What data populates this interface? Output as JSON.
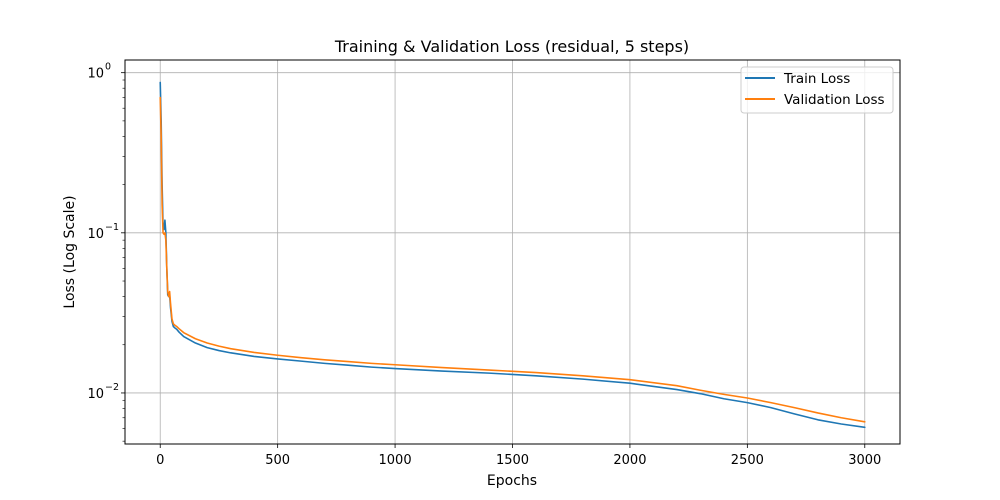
{
  "chart_data": {
    "type": "line",
    "title": "Training & Validation Loss (residual, 5 steps)",
    "xlabel": "Epochs",
    "ylabel": "Loss (Log Scale)",
    "y_scale": "log",
    "xlim": [
      -150,
      3150
    ],
    "ylim": [
      0.0048,
      1.2
    ],
    "grid": true,
    "legend_position": "top-right",
    "x_ticks": [
      {
        "value": 0,
        "label": "0"
      },
      {
        "value": 500,
        "label": "500"
      },
      {
        "value": 1000,
        "label": "1000"
      },
      {
        "value": 1500,
        "label": "1500"
      },
      {
        "value": 2000,
        "label": "2000"
      },
      {
        "value": 2500,
        "label": "2500"
      },
      {
        "value": 3000,
        "label": "3000"
      }
    ],
    "y_ticks": [
      {
        "value": 0.01,
        "base": "10",
        "exp": "−2"
      },
      {
        "value": 0.1,
        "base": "10",
        "exp": "−1"
      },
      {
        "value": 1,
        "base": "10",
        "exp": "0"
      }
    ],
    "series": [
      {
        "name": "Train Loss",
        "color": "#1f77b4",
        "points": [
          [
            0,
            0.87
          ],
          [
            4,
            0.5
          ],
          [
            8,
            0.2
          ],
          [
            12,
            0.11
          ],
          [
            16,
            0.105
          ],
          [
            20,
            0.12
          ],
          [
            24,
            0.1
          ],
          [
            28,
            0.06
          ],
          [
            32,
            0.041
          ],
          [
            36,
            0.04
          ],
          [
            40,
            0.041
          ],
          [
            44,
            0.034
          ],
          [
            50,
            0.028
          ],
          [
            56,
            0.026
          ],
          [
            62,
            0.0255
          ],
          [
            70,
            0.025
          ],
          [
            80,
            0.024
          ],
          [
            100,
            0.0225
          ],
          [
            150,
            0.0205
          ],
          [
            200,
            0.0192
          ],
          [
            250,
            0.0184
          ],
          [
            300,
            0.0178
          ],
          [
            400,
            0.0169
          ],
          [
            500,
            0.0163
          ],
          [
            600,
            0.0158
          ],
          [
            700,
            0.0153
          ],
          [
            800,
            0.0149
          ],
          [
            900,
            0.0145
          ],
          [
            1000,
            0.0142
          ],
          [
            1200,
            0.0137
          ],
          [
            1400,
            0.0133
          ],
          [
            1600,
            0.0128
          ],
          [
            1800,
            0.0122
          ],
          [
            2000,
            0.0115
          ],
          [
            2200,
            0.0105
          ],
          [
            2300,
            0.0099
          ],
          [
            2400,
            0.0092
          ],
          [
            2500,
            0.0087
          ],
          [
            2600,
            0.0081
          ],
          [
            2700,
            0.0074
          ],
          [
            2800,
            0.0068
          ],
          [
            2900,
            0.0064
          ],
          [
            3000,
            0.0061
          ]
        ]
      },
      {
        "name": "Validation Loss",
        "color": "#ff7f0e",
        "points": [
          [
            0,
            0.7
          ],
          [
            4,
            0.4
          ],
          [
            8,
            0.15
          ],
          [
            12,
            0.1
          ],
          [
            16,
            0.098
          ],
          [
            20,
            0.1
          ],
          [
            24,
            0.09
          ],
          [
            28,
            0.06
          ],
          [
            32,
            0.043
          ],
          [
            36,
            0.04
          ],
          [
            40,
            0.043
          ],
          [
            44,
            0.036
          ],
          [
            50,
            0.029
          ],
          [
            56,
            0.027
          ],
          [
            62,
            0.0265
          ],
          [
            70,
            0.026
          ],
          [
            80,
            0.0252
          ],
          [
            100,
            0.0238
          ],
          [
            150,
            0.0218
          ],
          [
            200,
            0.0205
          ],
          [
            250,
            0.0196
          ],
          [
            300,
            0.0189
          ],
          [
            400,
            0.0179
          ],
          [
            500,
            0.0172
          ],
          [
            600,
            0.0166
          ],
          [
            700,
            0.0161
          ],
          [
            800,
            0.0157
          ],
          [
            900,
            0.0153
          ],
          [
            1000,
            0.015
          ],
          [
            1200,
            0.0144
          ],
          [
            1400,
            0.0139
          ],
          [
            1600,
            0.0134
          ],
          [
            1800,
            0.0128
          ],
          [
            2000,
            0.0121
          ],
          [
            2200,
            0.0111
          ],
          [
            2300,
            0.0104
          ],
          [
            2400,
            0.0098
          ],
          [
            2500,
            0.0093
          ],
          [
            2600,
            0.0087
          ],
          [
            2700,
            0.0081
          ],
          [
            2800,
            0.0075
          ],
          [
            2900,
            0.007
          ],
          [
            3000,
            0.0066
          ]
        ]
      }
    ]
  }
}
